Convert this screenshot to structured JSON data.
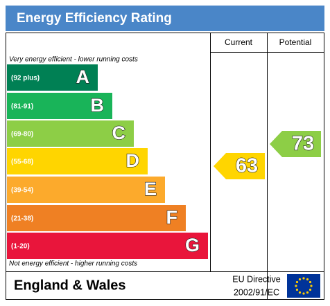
{
  "header": {
    "title": "Energy Efficiency Rating"
  },
  "columns": [
    "Current",
    "Potential"
  ],
  "top_note": "Very energy efficient - lower running costs",
  "bottom_note": "Not energy efficient - higher running costs",
  "bands": [
    {
      "range": "(92 plus)",
      "letter": "A",
      "color": "#008054"
    },
    {
      "range": "(81-91)",
      "letter": "B",
      "color": "#19b459"
    },
    {
      "range": "(69-80)",
      "letter": "C",
      "color": "#8dce46"
    },
    {
      "range": "(55-68)",
      "letter": "D",
      "color": "#ffd500"
    },
    {
      "range": "(39-54)",
      "letter": "E",
      "color": "#fcaa2c"
    },
    {
      "range": "(21-38)",
      "letter": "F",
      "color": "#ef8023"
    },
    {
      "range": "(1-20)",
      "letter": "G",
      "color": "#e9153b"
    }
  ],
  "current": {
    "label": "63",
    "color": "#ffd500"
  },
  "potential": {
    "label": "73",
    "color": "#8dce46"
  },
  "footer": {
    "region": "England & Wales",
    "directive": [
      "EU Directive",
      "2002/91/EC"
    ]
  }
}
